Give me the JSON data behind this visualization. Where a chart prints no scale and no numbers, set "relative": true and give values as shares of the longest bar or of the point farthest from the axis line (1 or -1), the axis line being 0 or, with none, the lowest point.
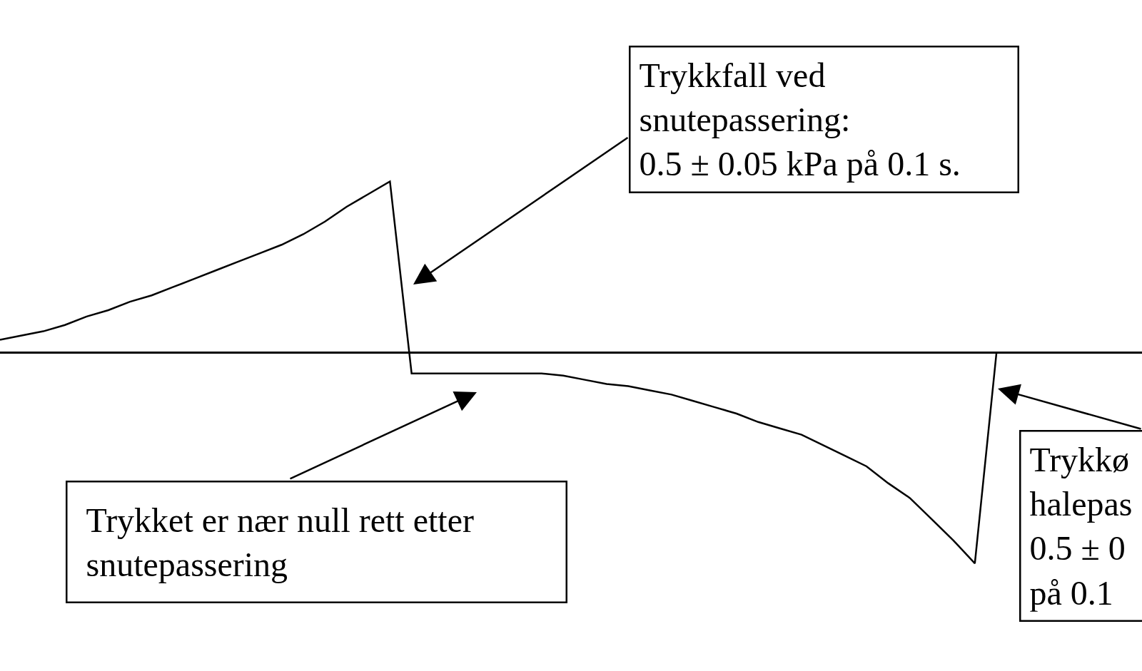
{
  "chart_data": {
    "type": "line",
    "relative": true,
    "color": "#000000",
    "line_style": "solid",
    "marker": "none",
    "categories": [
      null,
      null,
      null,
      null,
      null,
      null,
      null,
      null,
      null,
      null,
      null,
      null,
      null,
      null,
      null,
      null,
      null,
      null,
      null,
      null,
      null,
      null,
      null,
      null,
      null,
      null,
      null,
      null,
      null,
      null,
      null,
      null,
      null,
      null,
      null,
      null,
      null,
      null,
      null,
      null,
      null,
      null,
      null,
      null,
      null,
      null,
      null
    ],
    "values": [
      0.06,
      0.08,
      0.1,
      0.13,
      0.17,
      0.2,
      0.24,
      0.27,
      0.31,
      0.35,
      0.39,
      0.43,
      0.47,
      0.51,
      0.56,
      0.62,
      0.69,
      0.75,
      0.81,
      -0.1,
      -0.1,
      -0.1,
      -0.1,
      -0.1,
      -0.1,
      -0.1,
      -0.11,
      -0.13,
      -0.15,
      -0.16,
      -0.18,
      -0.2,
      -0.23,
      -0.26,
      -0.29,
      -0.33,
      -0.36,
      -0.39,
      -0.44,
      -0.49,
      -0.54,
      -0.62,
      -0.69,
      -0.79,
      -0.89,
      -1,
      0
    ],
    "annotations": [
      "Trykkfall ved\nsnutepassering:\n0.5 ± 0.05 kPa på 0.1 s.",
      "Trykket er nær null rett etter\nsnutepassering",
      "Trykkø\nhalepas\n0.5 ± 0\npå 0.1"
    ]
  }
}
